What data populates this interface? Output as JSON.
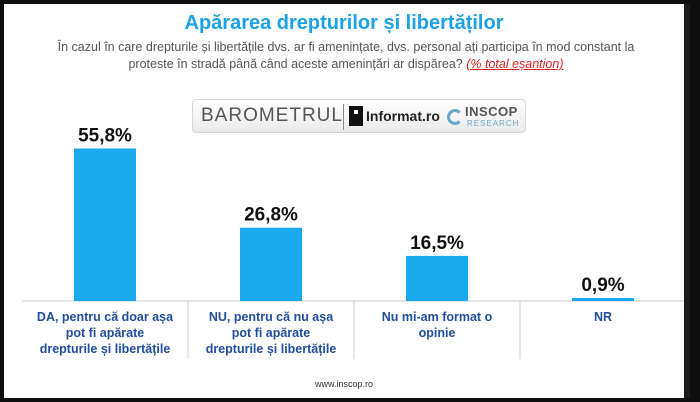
{
  "header": {
    "title": "Apărarea drepturilor și libertăților",
    "question": "În cazul în care drepturile și libertățile dvs. ar fi amenințate, dvs. personal ați participa în mod constant la proteste în stradă până când aceste amenințări ar dispărea?",
    "sample_note": "(% total eșantion)"
  },
  "logo": {
    "barometrul": "BAROMETRUL",
    "informat": "Informat.ro",
    "inscop": "INSCOP",
    "research": "RESEARCH"
  },
  "chart_data": {
    "type": "bar",
    "categories": [
      [
        "DA, pentru că doar așa",
        "pot fi apărate",
        "drepturile și libertățile"
      ],
      [
        "NU, pentru că nu așa",
        "pot fi apărate",
        "drepturile și libertățile"
      ],
      [
        "Nu mi-am format o",
        "opinie"
      ],
      [
        "NR"
      ]
    ],
    "values": [
      55.8,
      26.8,
      16.5,
      0.9
    ],
    "value_labels": [
      "55,8%",
      "26,8%",
      "16,5%",
      "0,9%"
    ],
    "ylim": [
      0,
      60
    ],
    "bar_color": "#1aa9ef",
    "grid": false
  },
  "footer": {
    "url": "www.inscop.ro"
  }
}
